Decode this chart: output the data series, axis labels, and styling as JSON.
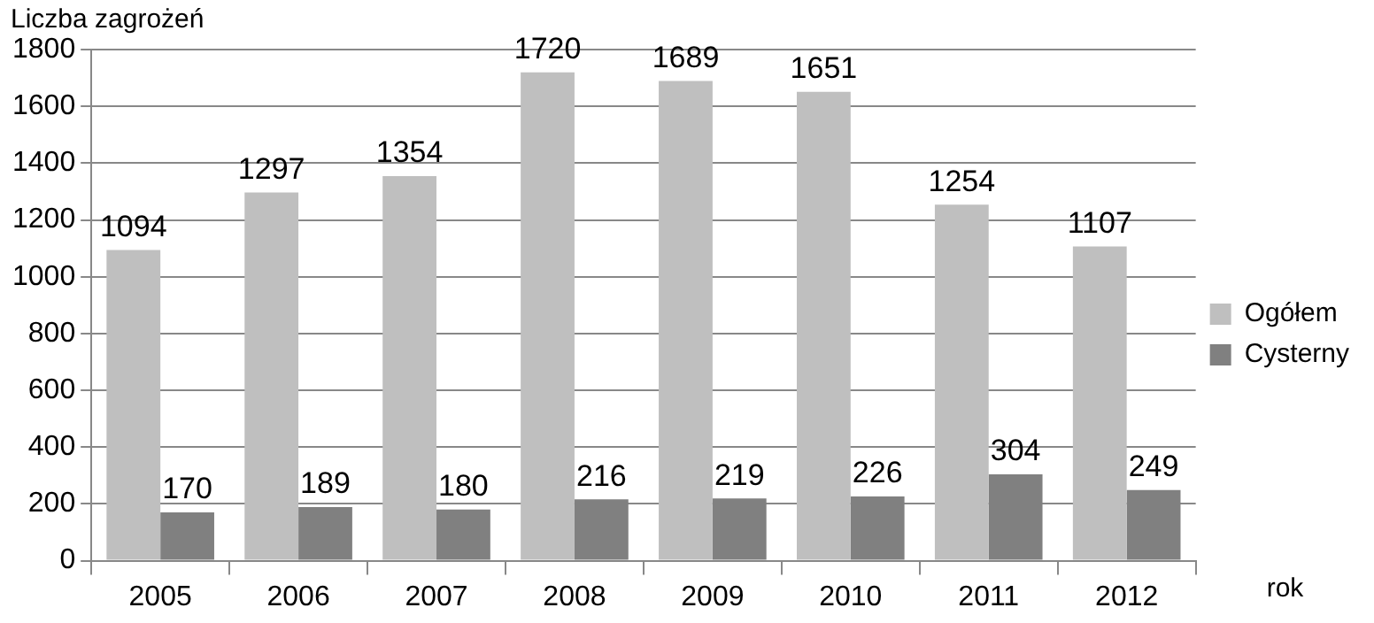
{
  "chart_data": {
    "type": "bar",
    "ylabel": "Liczba zagrożeń",
    "xlabel": "rok",
    "categories": [
      "2005",
      "2006",
      "2007",
      "2008",
      "2009",
      "2010",
      "2011",
      "2012"
    ],
    "series": [
      {
        "name": "Ogółem",
        "color": "#bfbfbf",
        "values": [
          1094,
          1297,
          1354,
          1720,
          1689,
          1651,
          1254,
          1107
        ]
      },
      {
        "name": "Cysterny",
        "color": "#808080",
        "values": [
          170,
          189,
          180,
          216,
          219,
          226,
          304,
          249
        ]
      }
    ],
    "ylim": [
      0,
      1800
    ],
    "yticks": [
      0,
      200,
      400,
      600,
      800,
      1000,
      1200,
      1400,
      1600,
      1800
    ],
    "grid": "y",
    "legend": "right",
    "data_labels": true
  }
}
